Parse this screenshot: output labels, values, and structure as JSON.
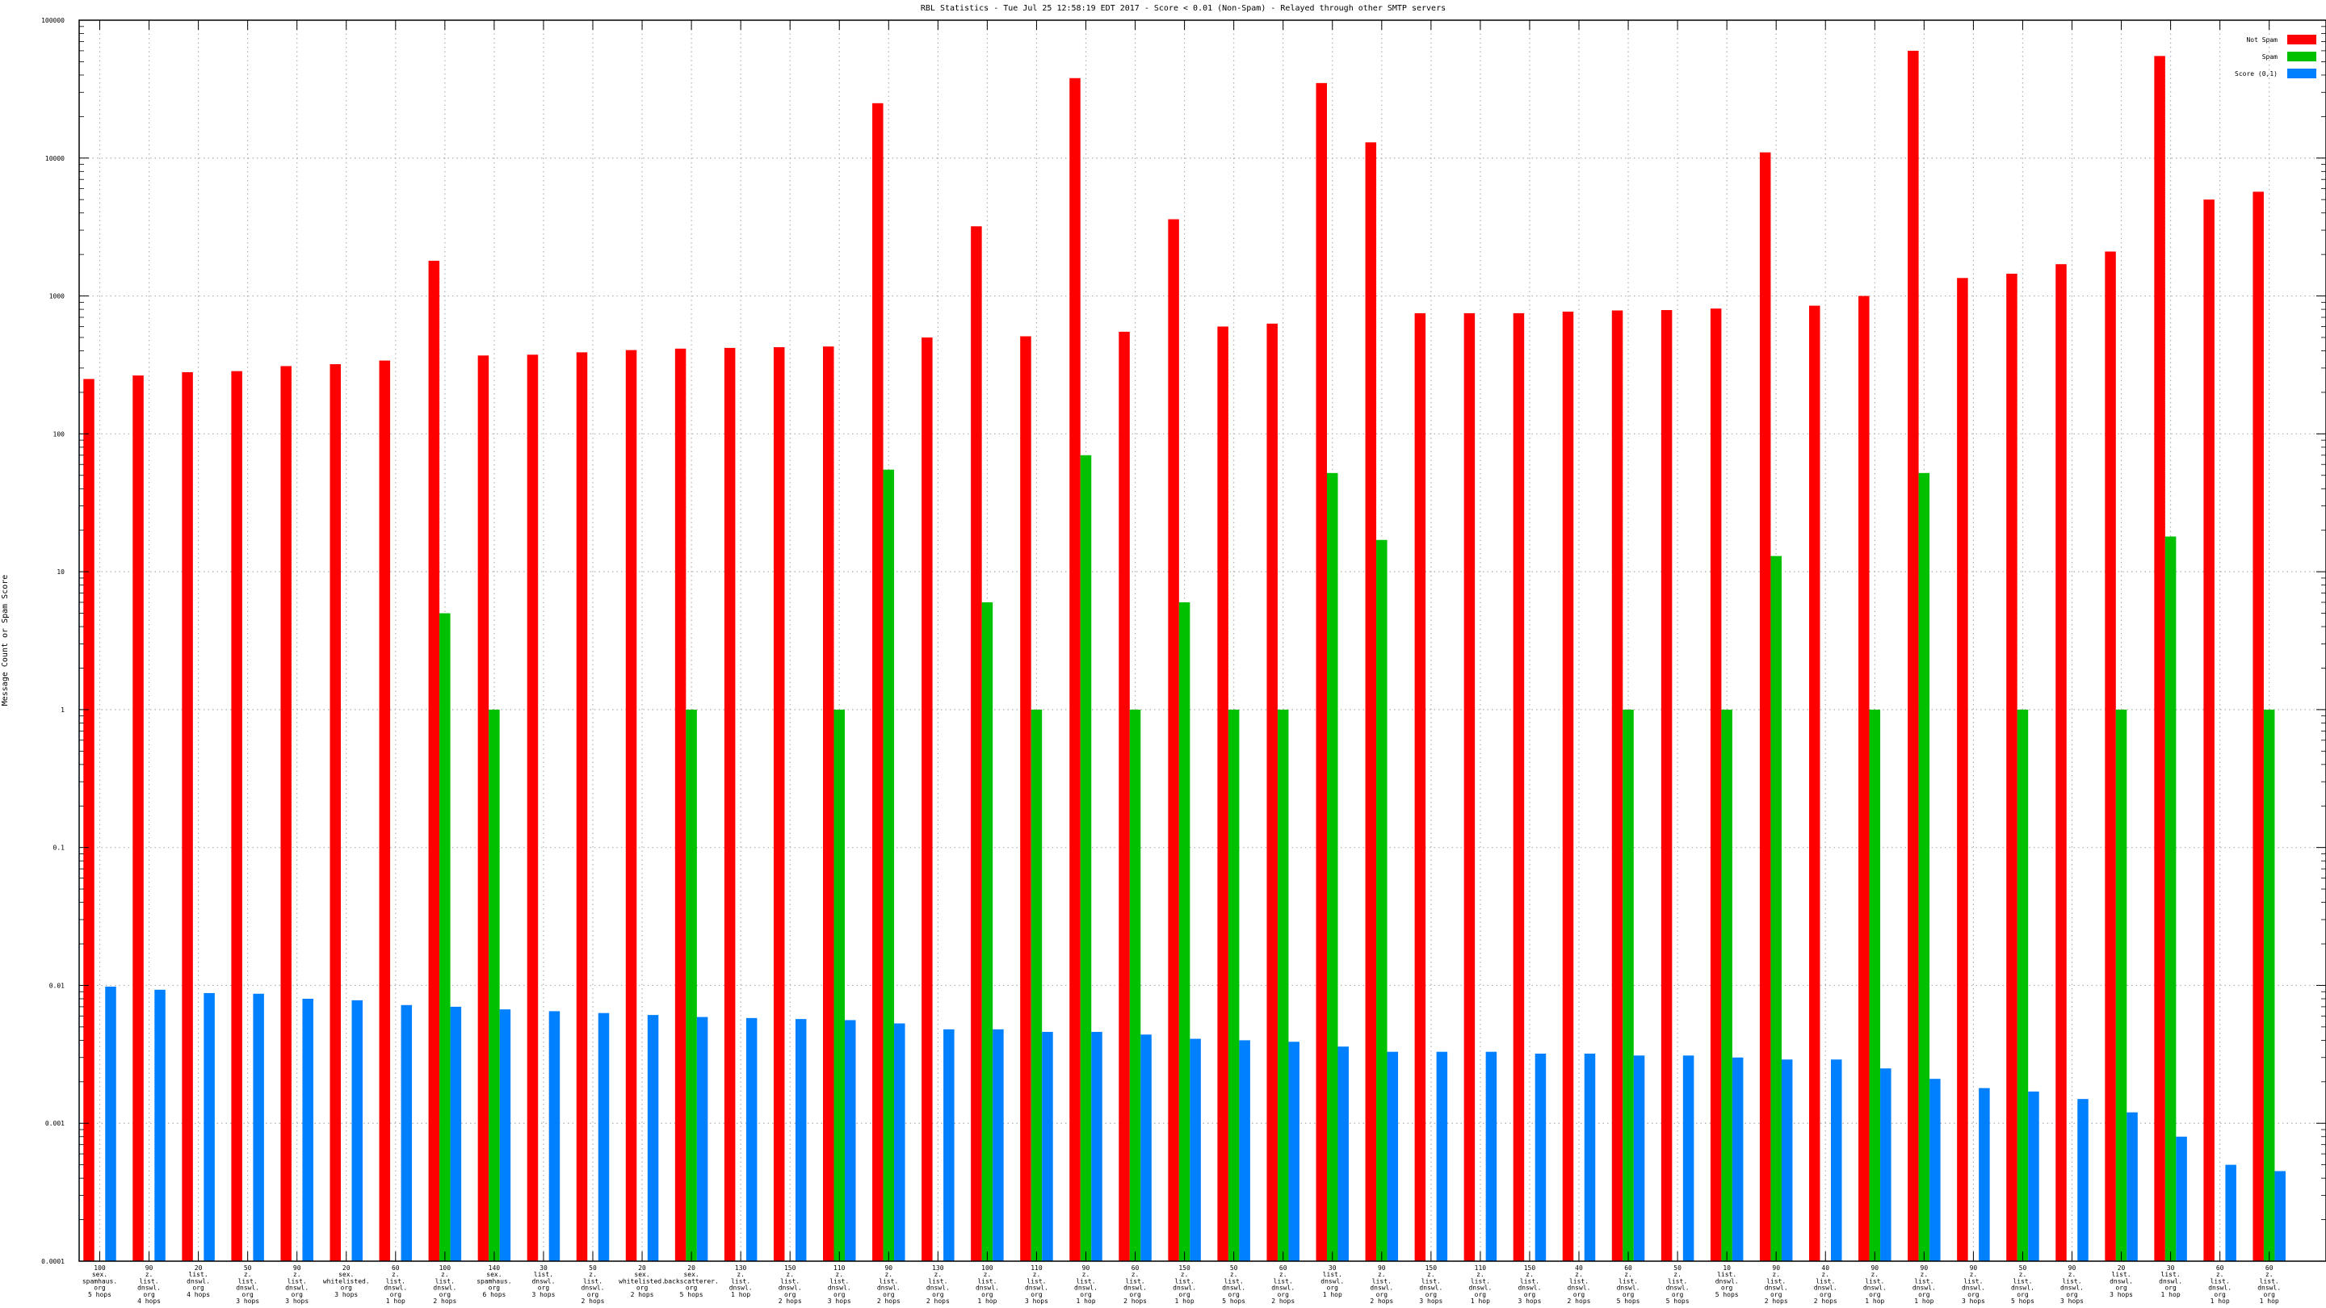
{
  "chart_data": {
    "type": "bar",
    "title": "RBL Statistics - Tue Jul 25 12:58:19 EDT 2017 - Score < 0.01 (Non-Spam) - Relayed through other SMTP servers",
    "ylabel": "Message Count or Spam Score",
    "xlabel": "",
    "yscale": "log",
    "ylim": [
      0.0001,
      100000
    ],
    "yticks": [
      "0.0001",
      "0.001",
      "0.01",
      "0.1",
      "1",
      "10",
      "100",
      "1000",
      "10000",
      "100000"
    ],
    "grid": true,
    "legend_position": "top-right",
    "colors": {
      "Not Spam": "#ff0000",
      "Spam": "#00c000",
      "Score (0,1)": "#0080ff"
    },
    "categories": [
      [
        "100",
        "sex.",
        "spamhaus.",
        "org",
        "5 hops"
      ],
      [
        "90",
        "z.",
        "list.",
        "dnswl.",
        "org",
        "4 hops"
      ],
      [
        "20",
        "list.",
        "dnswl.",
        "org",
        "4 hops"
      ],
      [
        "50",
        "z.",
        "list.",
        "dnswl.",
        "org",
        "3 hops"
      ],
      [
        "90",
        "z.",
        "list.",
        "dnswl.",
        "org",
        "3 hops"
      ],
      [
        "20",
        "sex.",
        "whitelisted.",
        "org",
        "3 hops"
      ],
      [
        "60",
        "z.",
        "list.",
        "dnswl.",
        "org",
        "1 hop"
      ],
      [
        "100",
        "z.",
        "list.",
        "dnswl.",
        "org",
        "2 hops"
      ],
      [
        "140",
        "sex.",
        "spamhaus.",
        "org",
        "6 hops"
      ],
      [
        "30",
        "list.",
        "dnswl.",
        "org",
        "3 hops"
      ],
      [
        "50",
        "z.",
        "list.",
        "dnswl.",
        "org",
        "2 hops"
      ],
      [
        "20",
        "sex.",
        "whitelisted.",
        "org",
        "2 hops"
      ],
      [
        "20",
        "sex.",
        "backscatterer.",
        "org",
        "5 hops"
      ],
      [
        "130",
        "z.",
        "list.",
        "dnswl.",
        "1 hop"
      ],
      [
        "150",
        "z.",
        "list.",
        "dnswl.",
        "org",
        "2 hops"
      ],
      [
        "110",
        "z.",
        "list.",
        "dnswl.",
        "org",
        "3 hops"
      ],
      [
        "90",
        "z.",
        "list.",
        "dnswl.",
        "org",
        "2 hops"
      ],
      [
        "130",
        "z.",
        "list.",
        "dnswl.",
        "org",
        "2 hops"
      ],
      [
        "100",
        "z.",
        "list.",
        "dnswl.",
        "org",
        "1 hop"
      ],
      [
        "110",
        "z.",
        "list.",
        "dnswl.",
        "org",
        "3 hops"
      ],
      [
        "90",
        "z.",
        "list.",
        "dnswl.",
        "org",
        "1 hop"
      ],
      [
        "60",
        "z.",
        "list.",
        "dnswl.",
        "org",
        "2 hops"
      ],
      [
        "150",
        "z.",
        "list.",
        "dnswl.",
        "org",
        "1 hop"
      ],
      [
        "50",
        "z.",
        "list.",
        "dnswl.",
        "org",
        "5 hops"
      ],
      [
        "60",
        "z.",
        "list.",
        "dnswl.",
        "org",
        "2 hops"
      ],
      [
        "30",
        "list.",
        "dnswl.",
        "org",
        "1 hop"
      ],
      [
        "90",
        "z.",
        "list.",
        "dnswl.",
        "org",
        "2 hops"
      ],
      [
        "150",
        "z.",
        "list.",
        "dnswl.",
        "org",
        "3 hops"
      ],
      [
        "110",
        "z.",
        "list.",
        "dnswl.",
        "org",
        "1 hop"
      ],
      [
        "150",
        "z.",
        "list.",
        "dnswl.",
        "org",
        "3 hops"
      ],
      [
        "40",
        "z.",
        "list.",
        "dnswl.",
        "org",
        "2 hops"
      ],
      [
        "60",
        "z.",
        "list.",
        "dnswl.",
        "org",
        "5 hops"
      ],
      [
        "50",
        "z.",
        "list.",
        "dnswl.",
        "org",
        "5 hops"
      ],
      [
        "10",
        "list.",
        "dnswl.",
        "org",
        "5 hops"
      ],
      [
        "90",
        "z.",
        "list.",
        "dnswl.",
        "org",
        "2 hops"
      ],
      [
        "40",
        "z.",
        "list.",
        "dnswl.",
        "org",
        "2 hops"
      ],
      [
        "90",
        "z.",
        "list.",
        "dnswl.",
        "org",
        "1 hop"
      ],
      [
        "90",
        "z.",
        "list.",
        "dnswl.",
        "org",
        "1 hop"
      ],
      [
        "90",
        "z.",
        "list.",
        "dnswl.",
        "org",
        "3 hops"
      ],
      [
        "50",
        "z.",
        "list.",
        "dnswl.",
        "org",
        "5 hops"
      ],
      [
        "90",
        "z.",
        "list.",
        "dnswl.",
        "org",
        "3 hops"
      ],
      [
        "20",
        "list.",
        "dnswl.",
        "org",
        "3 hops"
      ],
      [
        "30",
        "list.",
        "dnswl.",
        "org",
        "1 hop"
      ],
      [
        "60",
        "z.",
        "list.",
        "dnswl.",
        "org",
        "1 hop"
      ],
      [
        "60",
        "z.",
        "list.",
        "dnswl.",
        "org",
        "1 hop"
      ]
    ],
    "series": [
      {
        "name": "Not Spam",
        "values": [
          250,
          265,
          280,
          285,
          310,
          320,
          340,
          1800,
          370,
          375,
          390,
          405,
          415,
          420,
          425,
          430,
          25000,
          500,
          3200,
          510,
          38000,
          550,
          3600,
          600,
          630,
          35000,
          13000,
          750,
          750,
          750,
          770,
          785,
          790,
          810,
          11000,
          850,
          1000,
          60000,
          1350,
          1450,
          1700,
          2100,
          55000,
          5000,
          5700
        ]
      },
      {
        "name": "Spam",
        "values": [
          0,
          0,
          0,
          0,
          0,
          0,
          0,
          5,
          1,
          0,
          0,
          0,
          1,
          0,
          0,
          1,
          55,
          0,
          6,
          1,
          70,
          1,
          6,
          1,
          1,
          52,
          17,
          0,
          0,
          0,
          0,
          1,
          0,
          1,
          13,
          0,
          1,
          52,
          0,
          1,
          0,
          1,
          18,
          0,
          1
        ]
      },
      {
        "name": "Score (0,1)",
        "values": [
          0.0098,
          0.0093,
          0.0088,
          0.0087,
          0.008,
          0.0078,
          0.0072,
          0.007,
          0.0067,
          0.0065,
          0.0063,
          0.0061,
          0.0059,
          0.0058,
          0.0057,
          0.0056,
          0.0053,
          0.0048,
          0.0048,
          0.0046,
          0.0046,
          0.0044,
          0.0041,
          0.004,
          0.0039,
          0.0036,
          0.0033,
          0.0033,
          0.0033,
          0.0032,
          0.0032,
          0.0031,
          0.0031,
          0.003,
          0.0029,
          0.0029,
          0.0025,
          0.0021,
          0.0018,
          0.0017,
          0.0015,
          0.0012,
          0.0008,
          0.0005,
          0.00045
        ]
      }
    ]
  }
}
